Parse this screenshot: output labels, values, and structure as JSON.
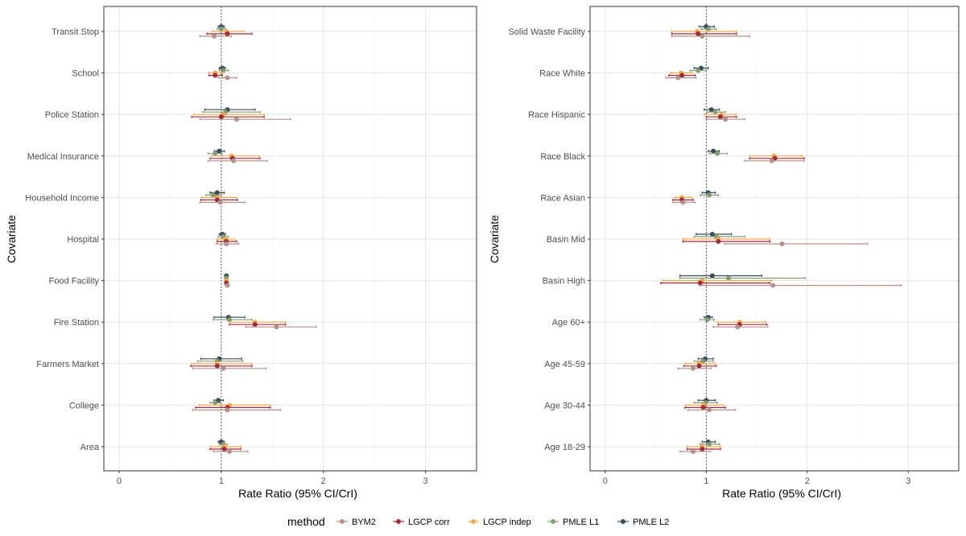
{
  "chart_data": [
    {
      "type": "forest",
      "xlabel": "Rate Ratio (95% CI/CrI)",
      "ylabel": "Covariate",
      "xlim": [
        -0.15,
        3.5
      ],
      "xticks": [
        0,
        1,
        2,
        3
      ],
      "reference_line": 1,
      "categories": [
        "Transit Stop",
        "School",
        "Police Station",
        "Medical Insurance",
        "Household Income",
        "Hospital",
        "Food Facility",
        "Fire Station",
        "Farmers Market",
        "College",
        "Area"
      ],
      "series": [
        {
          "name": "PMLE L2",
          "estimates": [
            1.0,
            1.01,
            1.06,
            0.98,
            0.96,
            1.01,
            1.05,
            1.07,
            0.98,
            0.97,
            1.0
          ],
          "lower": [
            0.97,
            0.98,
            0.84,
            0.93,
            0.89,
            0.98,
            1.04,
            0.93,
            0.8,
            0.93,
            0.97
          ],
          "upper": [
            1.03,
            1.04,
            1.33,
            1.03,
            1.03,
            1.04,
            1.06,
            1.23,
            1.2,
            1.02,
            1.03
          ]
        },
        {
          "name": "PMLE L1",
          "estimates": [
            1.0,
            1.02,
            1.04,
            0.94,
            0.92,
            1.02,
            1.05,
            1.08,
            0.96,
            0.94,
            1.02
          ],
          "lower": [
            0.96,
            0.98,
            0.82,
            0.87,
            0.85,
            0.97,
            1.04,
            0.92,
            0.77,
            0.89,
            0.98
          ],
          "upper": [
            1.04,
            1.07,
            1.38,
            1.01,
            1.0,
            1.07,
            1.06,
            1.3,
            1.21,
            0.99,
            1.06
          ]
        },
        {
          "name": "LGCP indep",
          "estimates": [
            1.05,
            0.94,
            1.02,
            1.1,
            0.96,
            1.04,
            1.05,
            1.33,
            0.96,
            1.08,
            1.03
          ],
          "lower": [
            0.91,
            0.88,
            0.73,
            0.91,
            0.81,
            0.96,
            1.04,
            1.09,
            0.71,
            0.78,
            0.9
          ],
          "upper": [
            1.22,
            1.01,
            1.42,
            1.37,
            1.15,
            1.13,
            1.06,
            1.63,
            1.3,
            1.48,
            1.19
          ]
        },
        {
          "name": "LGCP corr",
          "estimates": [
            1.06,
            0.94,
            1.0,
            1.11,
            0.96,
            1.05,
            1.05,
            1.33,
            0.96,
            1.06,
            1.03
          ],
          "lower": [
            0.86,
            0.88,
            0.71,
            0.89,
            0.8,
            0.96,
            1.04,
            1.08,
            0.7,
            0.75,
            0.89
          ],
          "upper": [
            1.3,
            1.01,
            1.42,
            1.38,
            1.16,
            1.15,
            1.06,
            1.63,
            1.3,
            1.48,
            1.19
          ]
        },
        {
          "name": "BYM2",
          "estimates": [
            0.93,
            1.06,
            1.15,
            1.12,
            0.99,
            1.05,
            1.06,
            1.54,
            1.02,
            1.06,
            1.08
          ],
          "lower": [
            0.79,
            0.97,
            0.79,
            0.87,
            0.79,
            0.95,
            1.05,
            1.24,
            0.72,
            0.72,
            0.92
          ],
          "upper": [
            1.1,
            1.15,
            1.68,
            1.45,
            1.23,
            1.17,
            1.07,
            1.93,
            1.44,
            1.58,
            1.26
          ]
        }
      ]
    },
    {
      "type": "forest",
      "xlabel": "Rate Ratio (95% CI/CrI)",
      "ylabel": "Covariate",
      "xlim": [
        -0.15,
        3.5
      ],
      "xticks": [
        0,
        1,
        2,
        3
      ],
      "reference_line": 1,
      "categories": [
        "Solid Waste Facility",
        "Race White",
        "Race Hispanic",
        "Race Black",
        "Race Asian",
        "Basin Mid",
        "Basin High",
        "Age 60+",
        "Age 45-59",
        "Age 30-44",
        "Age 18-29"
      ],
      "series": [
        {
          "name": "PMLE L2",
          "estimates": [
            1.0,
            0.95,
            1.05,
            1.07,
            1.02,
            1.06,
            1.06,
            1.02,
            0.99,
            1.0,
            1.02
          ],
          "lower": [
            0.93,
            0.88,
            0.98,
            1.02,
            0.96,
            0.9,
            0.74,
            0.98,
            0.92,
            0.92,
            0.96
          ],
          "upper": [
            1.08,
            1.02,
            1.13,
            1.13,
            1.09,
            1.25,
            1.55,
            1.06,
            1.07,
            1.09,
            1.09
          ]
        },
        {
          "name": "PMLE L1",
          "estimates": [
            1.02,
            0.92,
            1.09,
            1.11,
            1.03,
            1.1,
            1.22,
            1.01,
            0.97,
            0.99,
            1.03
          ],
          "lower": [
            0.95,
            0.84,
            1.01,
            1.03,
            0.94,
            0.88,
            0.74,
            0.94,
            0.88,
            0.88,
            0.94
          ],
          "upper": [
            1.1,
            1.0,
            1.19,
            1.21,
            1.12,
            1.38,
            1.98,
            1.08,
            1.07,
            1.11,
            1.13
          ]
        },
        {
          "name": "LGCP indep",
          "estimates": [
            0.91,
            0.75,
            1.15,
            1.67,
            0.76,
            1.12,
            0.96,
            1.33,
            0.93,
            0.97,
            0.96
          ],
          "lower": [
            0.66,
            0.65,
            0.98,
            1.43,
            0.69,
            0.77,
            0.57,
            1.11,
            0.79,
            0.8,
            0.81
          ],
          "upper": [
            1.3,
            0.86,
            1.29,
            1.95,
            0.86,
            1.63,
            1.65,
            1.59,
            1.09,
            1.17,
            1.14
          ]
        },
        {
          "name": "LGCP corr",
          "estimates": [
            0.92,
            0.76,
            1.14,
            1.68,
            0.76,
            1.12,
            0.94,
            1.33,
            0.93,
            0.97,
            0.96
          ],
          "lower": [
            0.66,
            0.63,
            1.0,
            1.43,
            0.67,
            0.77,
            0.55,
            1.12,
            0.78,
            0.79,
            0.81
          ],
          "upper": [
            1.3,
            0.89,
            1.3,
            1.97,
            0.87,
            1.63,
            1.63,
            1.6,
            1.1,
            1.19,
            1.14
          ]
        },
        {
          "name": "BYM2",
          "estimates": [
            0.96,
            0.72,
            1.19,
            1.65,
            0.77,
            1.75,
            1.66,
            1.31,
            0.87,
            1.03,
            0.87
          ],
          "lower": [
            0.66,
            0.6,
            1.01,
            1.38,
            0.67,
            1.18,
            0.93,
            1.07,
            0.72,
            0.82,
            0.74
          ],
          "upper": [
            1.43,
            0.9,
            1.38,
            1.97,
            0.89,
            2.6,
            2.93,
            1.61,
            1.05,
            1.29,
            1.04
          ]
        }
      ]
    }
  ],
  "legend": {
    "title": "method",
    "items": [
      {
        "label": "BYM2",
        "color": "#b3918c"
      },
      {
        "label": "LGCP corr",
        "color": "#9e2b36"
      },
      {
        "label": "LGCP indep",
        "color": "#f0a94f"
      },
      {
        "label": "PMLE L1",
        "color": "#839e76"
      },
      {
        "label": "PMLE L2",
        "color": "#3a4d58"
      }
    ]
  }
}
